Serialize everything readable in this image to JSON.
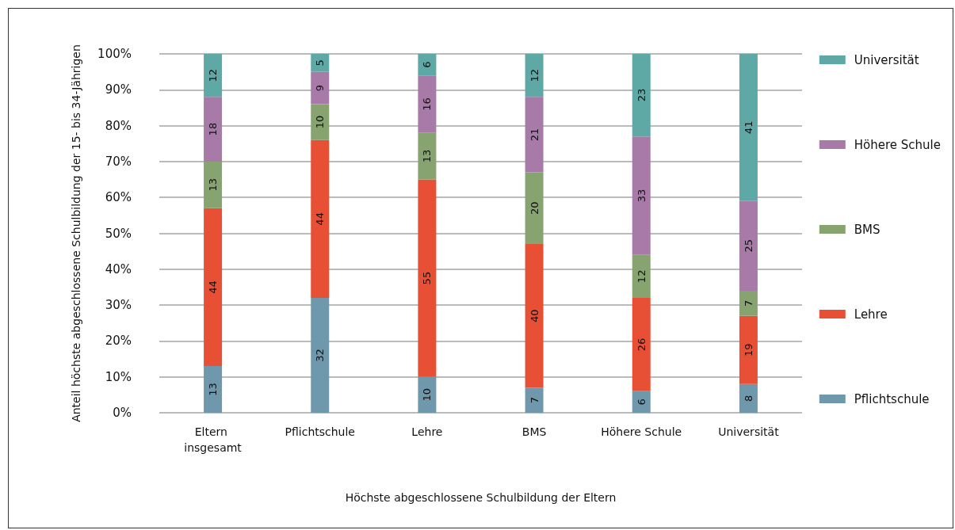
{
  "chart_data": {
    "type": "bar",
    "stacked": true,
    "xlabel": "Höchste abgeschlossene Schulbildung der Eltern",
    "ylabel": "Anteil höchste abgeschlossene Schulbildung der 15- bis 34-Jährigen",
    "categories": [
      "Eltern insgesamt",
      "Pflichtschule",
      "Lehre",
      "BMS",
      "Höhere Schule",
      "Universität"
    ],
    "series": [
      {
        "name": "Pflichtschule",
        "color": "#6f98ad",
        "values": [
          13,
          32,
          10,
          7,
          6,
          8
        ]
      },
      {
        "name": "Lehre",
        "color": "#e85035",
        "values": [
          44,
          44,
          55,
          40,
          26,
          19
        ]
      },
      {
        "name": "BMS",
        "color": "#87a370",
        "values": [
          13,
          10,
          13,
          20,
          12,
          7
        ]
      },
      {
        "name": "Höhere Schule",
        "color": "#a87aa8",
        "values": [
          18,
          9,
          16,
          21,
          33,
          25
        ]
      },
      {
        "name": "Universität",
        "color": "#5ea8a5",
        "values": [
          12,
          5,
          6,
          12,
          23,
          41
        ]
      }
    ],
    "ylim": [
      0,
      100
    ],
    "yticks": [
      {
        "value": 0,
        "label": "0%"
      },
      {
        "value": 10,
        "label": "10%"
      },
      {
        "value": 20,
        "label": "20%"
      },
      {
        "value": 30,
        "label": "30%"
      },
      {
        "value": 40,
        "label": "40%"
      },
      {
        "value": 50,
        "label": "50%"
      },
      {
        "value": 60,
        "label": "60%"
      },
      {
        "value": 70,
        "label": "70%"
      },
      {
        "value": 80,
        "label": "80%"
      },
      {
        "value": 90,
        "label": "90%"
      },
      {
        "value": 100,
        "label": "100%"
      }
    ],
    "grid": "y",
    "legend": "right",
    "data_labels": true
  }
}
